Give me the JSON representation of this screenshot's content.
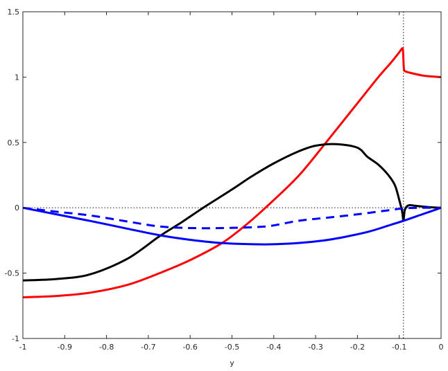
{
  "chart_data": {
    "type": "line",
    "title": "",
    "xlabel": "y",
    "ylabel": "",
    "xlim": [
      -1,
      0
    ],
    "ylim": [
      -1,
      1.5
    ],
    "xticks": [
      -1,
      -0.9,
      -0.8,
      -0.7,
      -0.6,
      -0.5,
      -0.4,
      -0.3,
      -0.2,
      -0.1,
      0
    ],
    "xtick_labels": [
      "-1",
      "-0.9",
      "-0.8",
      "-0.7",
      "-0.6",
      "-0.5",
      "-0.4",
      "-0.3",
      "-0.2",
      "-0.1",
      "0"
    ],
    "yticks": [
      -1,
      -0.5,
      0,
      0.5,
      1,
      1.5
    ],
    "ytick_labels": [
      "-1",
      "-0.5",
      "0",
      "0.5",
      "1",
      "1.5"
    ],
    "grid": false,
    "reference_lines": [
      {
        "orientation": "horizontal",
        "value": 0,
        "style": "dotted",
        "color": "#000000"
      },
      {
        "orientation": "vertical",
        "value": -0.09,
        "style": "dotted",
        "color": "#000000"
      }
    ],
    "series": [
      {
        "color": "#ff0000",
        "style": "solid",
        "x": [
          -1,
          -0.92,
          -0.84,
          -0.75,
          -0.673,
          -0.6,
          -0.524,
          -0.47,
          -0.42,
          -0.342,
          -0.275,
          -0.2,
          -0.15,
          -0.12,
          -0.1,
          -0.093,
          -0.091,
          -0.089,
          -0.086,
          -0.07,
          -0.04,
          0
        ],
        "y": [
          -0.685,
          -0.675,
          -0.65,
          -0.59,
          -0.5,
          -0.4,
          -0.27,
          -0.14,
          0,
          0.24,
          0.5,
          0.8,
          1.0,
          1.11,
          1.19,
          1.22,
          1.2,
          1.07,
          1.045,
          1.03,
          1.01,
          1.0
        ]
      },
      {
        "color": "#000000",
        "style": "solid",
        "x": [
          -1,
          -0.92,
          -0.84,
          -0.75,
          -0.673,
          -0.62,
          -0.569,
          -0.5,
          -0.453,
          -0.4,
          -0.342,
          -0.3,
          -0.25,
          -0.2,
          -0.176,
          -0.15,
          -0.126,
          -0.11,
          -0.1,
          -0.093,
          -0.09,
          -0.087,
          -0.082,
          -0.075,
          -0.06,
          -0.03,
          0
        ],
        "y": [
          -0.556,
          -0.545,
          -0.51,
          -0.39,
          -0.217,
          -0.11,
          0,
          0.14,
          0.24,
          0.34,
          0.43,
          0.475,
          0.487,
          0.46,
          0.39,
          0.33,
          0.25,
          0.17,
          0.06,
          -0.03,
          -0.1,
          -0.02,
          0.01,
          0.02,
          0.015,
          0.005,
          0
        ]
      },
      {
        "color": "#0000ff",
        "style": "solid",
        "x": [
          -1,
          -0.92,
          -0.84,
          -0.75,
          -0.673,
          -0.6,
          -0.524,
          -0.42,
          -0.342,
          -0.28,
          -0.226,
          -0.17,
          -0.12,
          -0.09,
          -0.045,
          0
        ],
        "y": [
          0,
          -0.05,
          -0.1,
          -0.16,
          -0.21,
          -0.245,
          -0.27,
          -0.28,
          -0.27,
          -0.25,
          -0.22,
          -0.18,
          -0.13,
          -0.1,
          -0.05,
          0
        ]
      },
      {
        "color": "#0000ff",
        "style": "dashed",
        "x": [
          -1,
          -0.92,
          -0.84,
          -0.75,
          -0.673,
          -0.6,
          -0.524,
          -0.42,
          -0.342,
          -0.27,
          -0.2,
          -0.14,
          -0.09,
          -0.05,
          0
        ],
        "y": [
          0,
          -0.03,
          -0.058,
          -0.105,
          -0.143,
          -0.155,
          -0.155,
          -0.143,
          -0.1,
          -0.075,
          -0.05,
          -0.025,
          -0.005,
          0,
          0
        ]
      }
    ]
  }
}
